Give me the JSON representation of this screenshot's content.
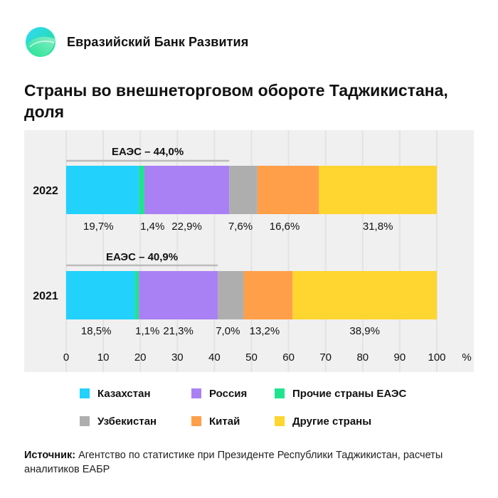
{
  "brand": {
    "name": "Евразийский Банк Развития"
  },
  "title": "Страны во внешнеторговом обороте Таджикистана, доля",
  "colors": {
    "kz": "#22D1FC",
    "ru": "#AA80F5",
    "eaeu": "#1FE48F",
    "uz": "#AEAEAE",
    "cn": "#FF9F4A",
    "other": "#FFD52F",
    "plot_bg": "#F0F0F0",
    "grid": "#E3E3E3",
    "bracket": "#BBBBBB"
  },
  "legend": {
    "row1": [
      {
        "label": "Казахстан",
        "key": "kz"
      },
      {
        "label": "Россия",
        "key": "ru"
      },
      {
        "label": "Прочие страны ЕАЭС",
        "key": "eaeu"
      }
    ],
    "row2": [
      {
        "label": "Узбекистан",
        "key": "uz"
      },
      {
        "label": "Китай",
        "key": "cn"
      },
      {
        "label": "Другие страны",
        "key": "other"
      }
    ]
  },
  "source": {
    "label": "Источник:",
    "text": " Агентство по статистике при Президенте Республики Таджикистан, расчеты аналитиков ЕАБР"
  },
  "chart_data": {
    "type": "bar",
    "orientation": "horizontal",
    "stacked": true,
    "categories": [
      "2022",
      "2021"
    ],
    "series": [
      {
        "name": "Казахстан",
        "key": "kz",
        "values": [
          19.7,
          18.5
        ],
        "labels": [
          "19,7%",
          "18,5%"
        ]
      },
      {
        "name": "Прочие страны ЕАЭС",
        "key": "eaeu",
        "values": [
          1.4,
          1.1
        ],
        "labels": [
          "1,4%",
          "1,1%"
        ]
      },
      {
        "name": "Россия",
        "key": "ru",
        "values": [
          22.9,
          21.3
        ],
        "labels": [
          "22,9%",
          "21,3%"
        ]
      },
      {
        "name": "Узбекистан",
        "key": "uz",
        "values": [
          7.6,
          7.0
        ],
        "labels": [
          "7,6%",
          "7,0%"
        ]
      },
      {
        "name": "Китай",
        "key": "cn",
        "values": [
          16.6,
          13.2
        ],
        "labels": [
          "16,6%",
          "13,2%"
        ]
      },
      {
        "name": "Другие страны",
        "key": "other",
        "values": [
          31.8,
          38.9
        ],
        "labels": [
          "31,8%",
          "38,9%"
        ]
      }
    ],
    "annotations": [
      {
        "category": "2022",
        "text": "ЕАЭС – 44,0%",
        "value": 44.0
      },
      {
        "category": "2021",
        "text": "ЕАЭС – 40,9%",
        "value": 40.9
      }
    ],
    "xlim": [
      0,
      100
    ],
    "xticks": [
      0,
      10,
      20,
      30,
      40,
      50,
      60,
      70,
      80,
      90,
      100
    ],
    "xunit": "%",
    "grid": true,
    "title": "Страны во внешнеторговом обороте Таджикистана, доля"
  }
}
